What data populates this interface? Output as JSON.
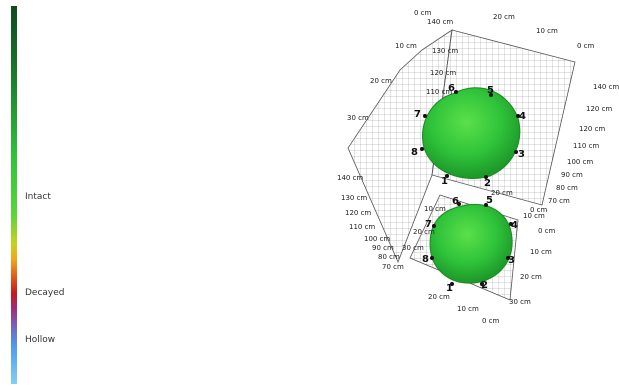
{
  "legend": {
    "intact": "Intact",
    "decayed": "Decayed",
    "hollow": "Hollow"
  },
  "upper_ticks": {
    "top_left": [
      "0 cm",
      "140 cm",
      "130 cm",
      "120 cm",
      "110 cm"
    ],
    "top_right": [
      "20 cm",
      "10 cm",
      "0 cm"
    ],
    "right": [
      "140 cm",
      "120 cm",
      "120 cm",
      "110 cm",
      "100 cm",
      "90 cm",
      "80 cm",
      "70 cm"
    ],
    "left_wall": [
      "10 cm",
      "20 cm",
      "30 cm"
    ],
    "left_vertical": [
      "140 cm",
      "130 cm",
      "120 cm",
      "110 cm",
      "100 cm",
      "90 cm",
      "80 cm",
      "70 cm"
    ],
    "front": [
      "10 cm",
      "20 cm",
      "0 cm"
    ]
  },
  "lower_ticks": {
    "right": [
      "10 cm",
      "0 cm",
      "10 cm",
      "20 cm",
      "30 cm"
    ],
    "bottom": [
      "20 cm",
      "10 cm",
      "0 cm"
    ],
    "left": [
      "20 cm",
      "30 cm"
    ]
  },
  "sensors": [
    "1",
    "2",
    "3",
    "4",
    "5",
    "6",
    "7",
    "8"
  ],
  "colors": {
    "tree_green": "#2fc33a",
    "tree_dark": "#1e9a2a",
    "grid": "#666666"
  }
}
